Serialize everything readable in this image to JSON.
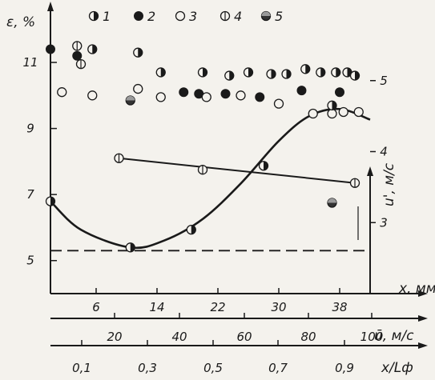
{
  "chart_data": {
    "type": "scatter",
    "title": "",
    "legend": {
      "placement": "top",
      "entries": [
        {
          "label": "1",
          "marker": "half-filled"
        },
        {
          "label": "2",
          "marker": "filled"
        },
        {
          "label": "3",
          "marker": "open"
        },
        {
          "label": "4",
          "marker": "crossed"
        },
        {
          "label": "5",
          "marker": "dark"
        }
      ]
    },
    "axes": {
      "y_left": {
        "label": "ε, %",
        "ylim": [
          4,
          12.6
        ],
        "ticks": [
          "5",
          "7",
          "9",
          "11"
        ],
        "tick_values": [
          5,
          7,
          9,
          11
        ]
      },
      "y_right": {
        "label": "u', м/с",
        "ylim": [
          2,
          6
        ],
        "ticks": [
          "3",
          "4",
          "5"
        ],
        "tick_values": [
          3,
          4,
          5
        ]
      },
      "x_main": {
        "label": "x, мм",
        "xlim": [
          0,
          42
        ],
        "ticks": [
          "6",
          "14",
          "22",
          "30",
          "38"
        ],
        "tick_values": [
          6,
          14,
          22,
          30,
          38
        ]
      },
      "x_u": {
        "label": "ū, м/с",
        "ticks": [
          "20",
          "40",
          "60",
          "80",
          "100"
        ]
      },
      "x_L": {
        "label": "x/Lф",
        "ticks": [
          "0,1",
          "0,3",
          "0,5",
          "0,7",
          "0,9"
        ]
      }
    },
    "series": [
      {
        "name": "1",
        "marker": "half-filled",
        "points": [
          [
            5.5,
            11.4
          ],
          [
            11.5,
            11.3
          ],
          [
            14.5,
            10.7
          ],
          [
            20,
            10.7
          ],
          [
            23.5,
            10.6
          ],
          [
            26,
            10.7
          ],
          [
            29,
            10.65
          ],
          [
            31,
            10.65
          ],
          [
            33.5,
            10.8
          ],
          [
            35.5,
            10.7
          ],
          [
            37.5,
            10.7
          ],
          [
            39,
            10.7
          ],
          [
            40,
            10.6
          ]
        ]
      },
      {
        "name": "2",
        "marker": "filled",
        "points": [
          [
            0,
            11.4
          ],
          [
            3.5,
            11.2
          ],
          [
            17.5,
            10.1
          ],
          [
            19.5,
            10.05
          ],
          [
            23,
            10.05
          ],
          [
            27.5,
            9.95
          ],
          [
            33,
            10.15
          ],
          [
            38,
            10.1
          ]
        ]
      },
      {
        "name": "3",
        "marker": "open",
        "points": [
          [
            1.5,
            10.1
          ],
          [
            5.5,
            10.0
          ],
          [
            11.5,
            10.2
          ],
          [
            14.5,
            9.95
          ],
          [
            20.5,
            9.95
          ],
          [
            25,
            10.0
          ],
          [
            30,
            9.75
          ],
          [
            34.5,
            9.45
          ],
          [
            37,
            9.45
          ],
          [
            38.5,
            9.5
          ],
          [
            40.5,
            9.5
          ]
        ]
      },
      {
        "name": "4",
        "marker": "crossed",
        "points": [
          [
            3.5,
            11.5
          ],
          [
            4,
            10.95
          ],
          [
            9,
            8.1
          ],
          [
            20,
            7.75
          ],
          [
            40,
            7.35
          ]
        ]
      },
      {
        "name": "5",
        "marker": "dark",
        "points": [
          [
            10.5,
            9.85
          ],
          [
            37,
            6.75
          ]
        ]
      },
      {
        "name": "u'",
        "axis": "right",
        "marker": "half-filled",
        "points": [
          [
            0,
            3.3
          ],
          [
            10.5,
            2.65
          ],
          [
            18.5,
            2.9
          ],
          [
            28,
            3.8
          ],
          [
            37,
            4.65
          ]
        ]
      }
    ],
    "lines": [
      {
        "kind": "straight",
        "axis": "left",
        "points": [
          [
            9,
            8.1
          ],
          [
            40,
            7.35
          ]
        ]
      },
      {
        "kind": "curve",
        "axis": "right",
        "points": [
          [
            0,
            3.3
          ],
          [
            4,
            2.9
          ],
          [
            10.5,
            2.65
          ],
          [
            15,
            2.75
          ],
          [
            20,
            3.05
          ],
          [
            25,
            3.55
          ],
          [
            30,
            4.15
          ],
          [
            34,
            4.5
          ],
          [
            38,
            4.6
          ],
          [
            42,
            4.45
          ]
        ]
      },
      {
        "kind": "dashed",
        "axis": "left",
        "y": 5.3
      }
    ],
    "grid": false
  }
}
